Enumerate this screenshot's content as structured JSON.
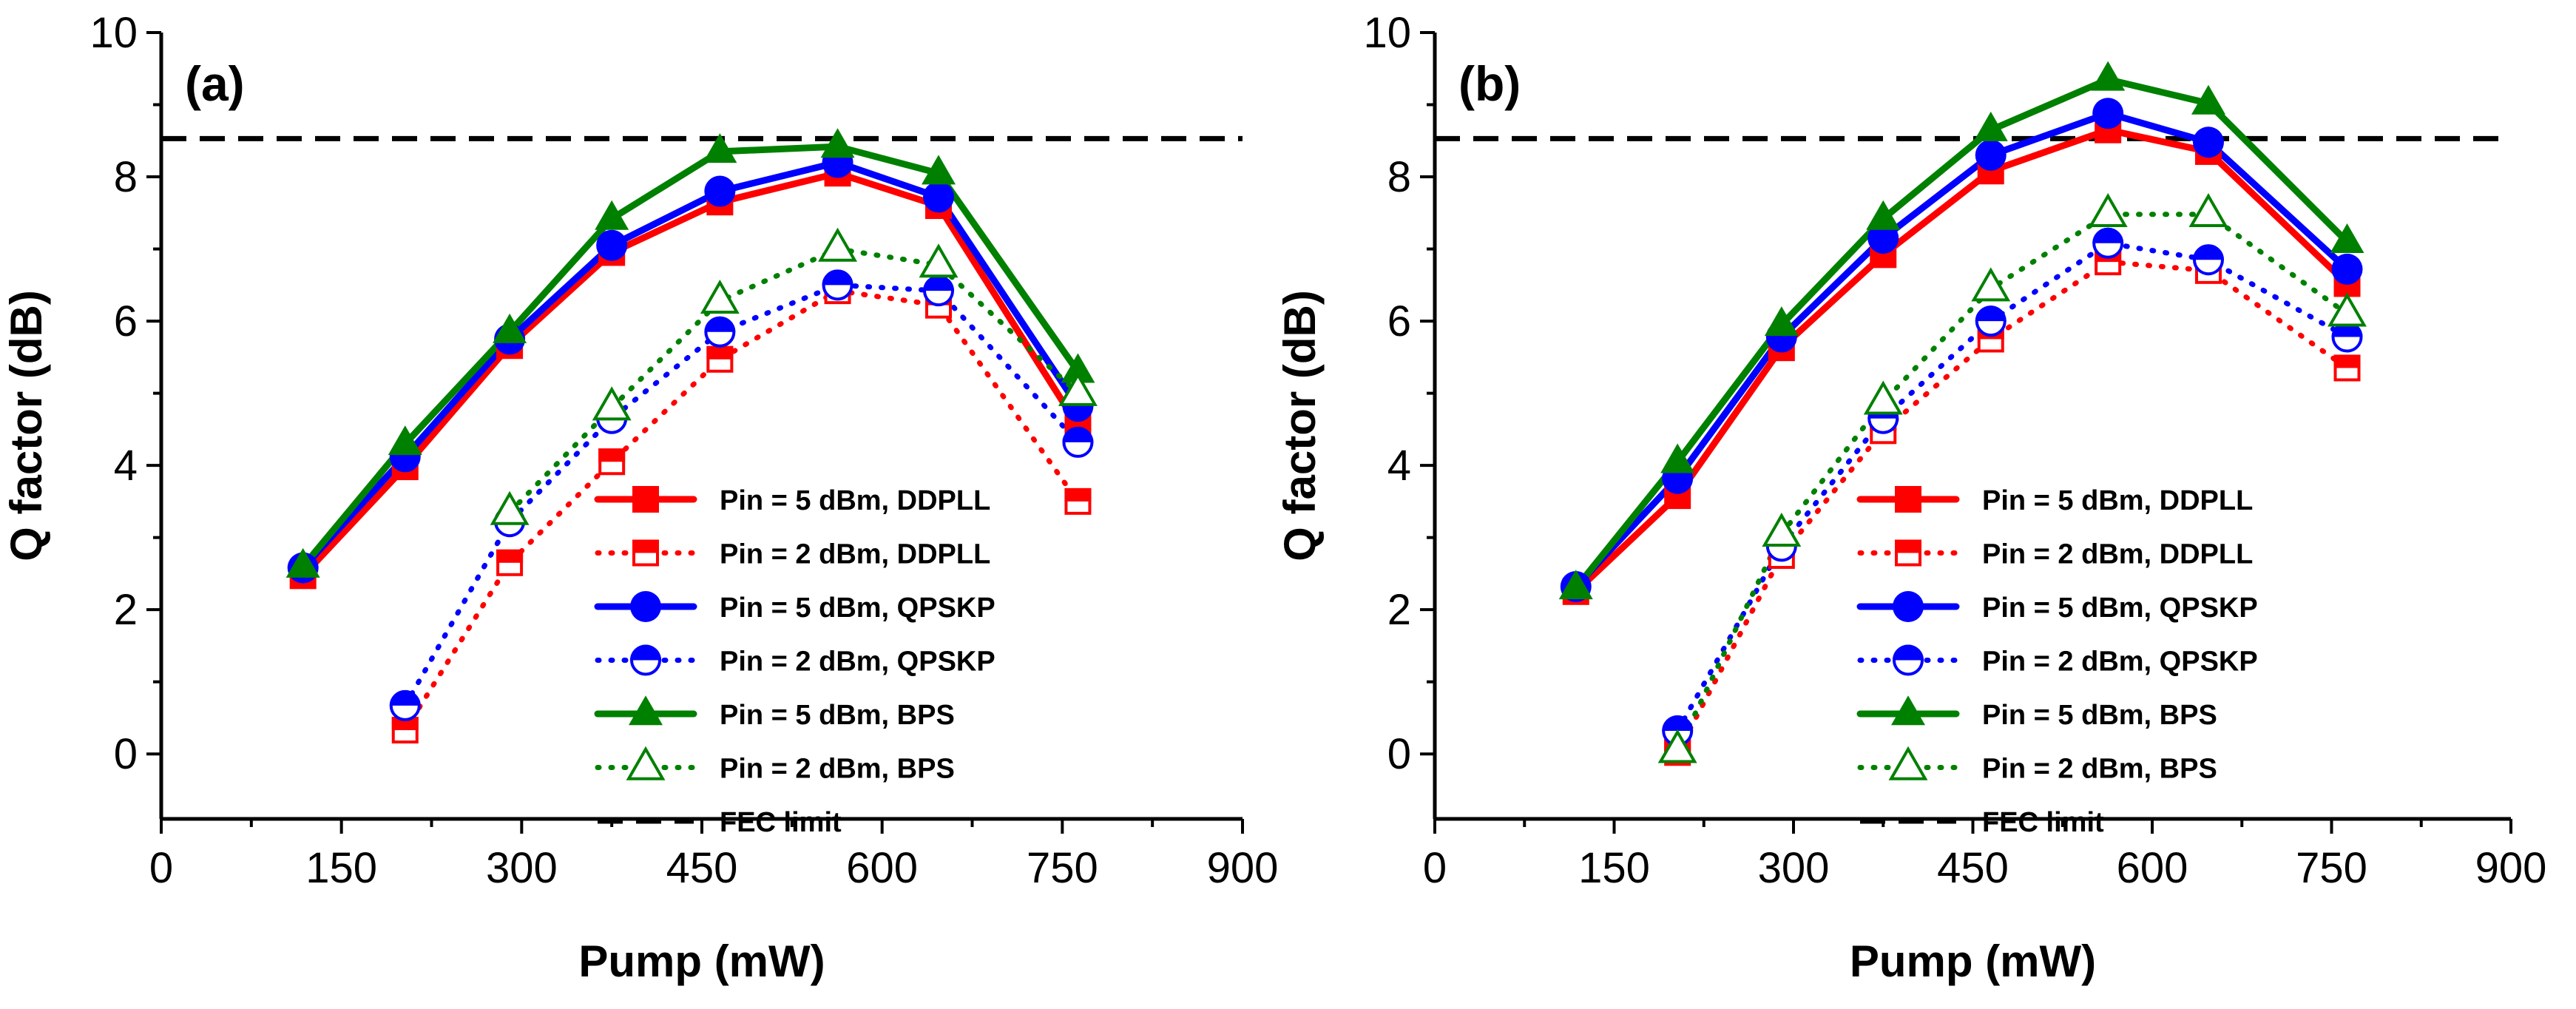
{
  "chart_data": [
    {
      "type": "line",
      "panel_label": "(a)",
      "xlabel": "Pump (mW)",
      "ylabel": "Q factor (dB)",
      "xlim": [
        0,
        900
      ],
      "ylim": [
        -0.9,
        10
      ],
      "xticks": [
        0,
        150,
        300,
        450,
        600,
        750,
        900
      ],
      "yticks": [
        0,
        2,
        4,
        6,
        8,
        10
      ],
      "fec_limit": 8.53,
      "fec_label": "FEC limit",
      "series": [
        {
          "name": "Pin = 5 dBm, DDPLL",
          "color": "#ff0000",
          "style": "solid",
          "marker": "square",
          "fill": true,
          "x": [
            118,
            203,
            290,
            375,
            465,
            563,
            647,
            763
          ],
          "y": [
            2.47,
            3.98,
            5.66,
            6.95,
            7.65,
            8.05,
            7.6,
            4.55
          ]
        },
        {
          "name": "Pin = 2 dBm, DDPLL",
          "color": "#ff0000",
          "style": "dotted",
          "marker": "square",
          "fill": false,
          "x": [
            203,
            290,
            375,
            465,
            563,
            647,
            763
          ],
          "y": [
            0.33,
            2.65,
            4.05,
            5.47,
            6.42,
            6.22,
            3.5
          ]
        },
        {
          "name": "Pin = 5 dBm, QPSKP",
          "color": "#0000ff",
          "style": "solid",
          "marker": "circle",
          "fill": true,
          "x": [
            118,
            203,
            290,
            375,
            465,
            563,
            647,
            763
          ],
          "y": [
            2.58,
            4.12,
            5.75,
            7.05,
            7.8,
            8.2,
            7.72,
            4.82
          ]
        },
        {
          "name": "Pin = 2 dBm, QPSKP",
          "color": "#0000ff",
          "style": "dotted",
          "marker": "circle",
          "fill": false,
          "x": [
            203,
            290,
            375,
            465,
            563,
            647,
            763
          ],
          "y": [
            0.67,
            3.22,
            4.65,
            5.85,
            6.5,
            6.42,
            4.32
          ]
        },
        {
          "name": "Pin = 5 dBm, BPS",
          "color": "#008000",
          "style": "solid",
          "marker": "triangle",
          "fill": true,
          "x": [
            118,
            203,
            290,
            375,
            465,
            563,
            647,
            763
          ],
          "y": [
            2.6,
            4.3,
            5.85,
            7.42,
            8.35,
            8.42,
            8.05,
            5.3
          ]
        },
        {
          "name": "Pin = 2 dBm, BPS",
          "color": "#008000",
          "style": "dotted",
          "marker": "triangle",
          "fill": false,
          "x": [
            290,
            375,
            465,
            563,
            647,
            763
          ],
          "y": [
            3.35,
            4.8,
            6.28,
            7.0,
            6.78,
            5.0
          ]
        }
      ]
    },
    {
      "type": "line",
      "panel_label": "(b)",
      "xlabel": "Pump (mW)",
      "ylabel": "Q factor (dB)",
      "xlim": [
        0,
        900
      ],
      "ylim": [
        -0.9,
        10
      ],
      "xticks": [
        0,
        150,
        300,
        450,
        600,
        750,
        900
      ],
      "yticks": [
        0,
        2,
        4,
        6,
        8,
        10
      ],
      "fec_limit": 8.53,
      "fec_label": "FEC limit",
      "series": [
        {
          "name": "Pin = 5 dBm, DDPLL",
          "color": "#ff0000",
          "style": "solid",
          "marker": "square",
          "fill": true,
          "x": [
            118,
            203,
            290,
            375,
            465,
            563,
            647,
            763
          ],
          "y": [
            2.25,
            3.58,
            5.63,
            6.92,
            8.08,
            8.65,
            8.35,
            6.52
          ]
        },
        {
          "name": "Pin = 2 dBm, DDPLL",
          "color": "#ff0000",
          "style": "dotted",
          "marker": "square",
          "fill": false,
          "x": [
            203,
            290,
            375,
            465,
            563,
            647,
            763
          ],
          "y": [
            0.02,
            2.75,
            4.48,
            5.75,
            6.82,
            6.7,
            5.35
          ]
        },
        {
          "name": "Pin = 5 dBm, QPSKP",
          "color": "#0000ff",
          "style": "solid",
          "marker": "circle",
          "fill": true,
          "x": [
            118,
            203,
            290,
            375,
            465,
            563,
            647,
            763
          ],
          "y": [
            2.32,
            3.82,
            5.78,
            7.15,
            8.3,
            8.88,
            8.48,
            6.72
          ]
        },
        {
          "name": "Pin = 2 dBm, QPSKP",
          "color": "#0000ff",
          "style": "dotted",
          "marker": "circle",
          "fill": false,
          "x": [
            203,
            290,
            375,
            465,
            563,
            647,
            763
          ],
          "y": [
            0.32,
            2.88,
            4.65,
            6.0,
            7.08,
            6.85,
            5.78
          ]
        },
        {
          "name": "Pin = 5 dBm, BPS",
          "color": "#008000",
          "style": "solid",
          "marker": "triangle",
          "fill": true,
          "x": [
            118,
            203,
            290,
            375,
            465,
            563,
            647,
            763
          ],
          "y": [
            2.3,
            4.05,
            5.95,
            7.42,
            8.65,
            9.35,
            9.02,
            7.1
          ]
        },
        {
          "name": "Pin = 2 dBm, BPS",
          "color": "#008000",
          "style": "dotted",
          "marker": "triangle",
          "fill": false,
          "x": [
            203,
            290,
            375,
            465,
            563,
            647,
            763
          ],
          "y": [
            0.05,
            3.05,
            4.88,
            6.45,
            7.48,
            7.48,
            6.1
          ]
        }
      ]
    }
  ]
}
